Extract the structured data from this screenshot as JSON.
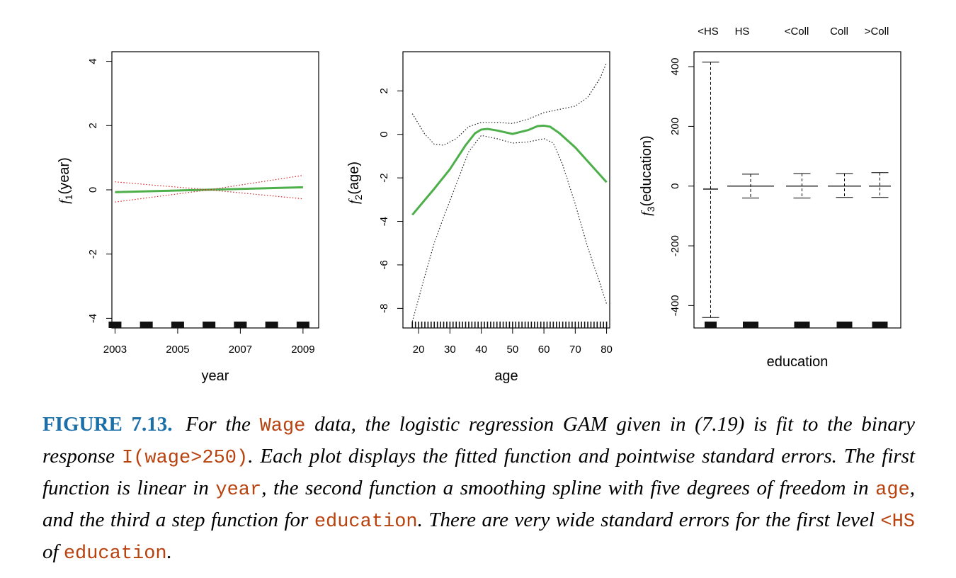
{
  "chart_data": [
    {
      "type": "line",
      "xlabel": "year",
      "ylabel_func": "f",
      "ylabel_sub": "1",
      "ylabel_arg": "(year)",
      "x_ticks": [
        2003,
        2005,
        2007,
        2009
      ],
      "y_ticks": [
        -4,
        -2,
        0,
        2,
        4
      ],
      "xlim": [
        2002.9,
        2009.5
      ],
      "ylim": [
        -4.3,
        4.3
      ],
      "grid": false,
      "series": [
        {
          "role": "fit",
          "color": "#4daf4a",
          "x": [
            2003,
            2009
          ],
          "y": [
            -0.07,
            0.08
          ]
        },
        {
          "role": "upper",
          "color": "#d62728",
          "x": [
            2003,
            2006,
            2009
          ],
          "y": [
            0.25,
            0.0,
            0.45
          ]
        },
        {
          "role": "lower",
          "color": "#d62728",
          "x": [
            2003,
            2006,
            2009
          ],
          "y": [
            -0.38,
            0.0,
            -0.28
          ]
        }
      ],
      "rug": [
        2003,
        2004,
        2005,
        2006,
        2007,
        2008,
        2009
      ]
    },
    {
      "type": "line",
      "xlabel": "age",
      "ylabel_func": "f",
      "ylabel_sub": "2",
      "ylabel_arg": "(age)",
      "x_ticks": [
        20,
        30,
        40,
        50,
        60,
        70,
        80
      ],
      "y_ticks": [
        -8,
        -6,
        -4,
        -2,
        0,
        2
      ],
      "xlim": [
        15,
        81
      ],
      "ylim": [
        -8.9,
        3.8
      ],
      "grid": false,
      "series": [
        {
          "role": "fit",
          "color": "#4daf4a",
          "x": [
            18,
            25,
            30,
            35,
            38,
            40,
            42,
            45,
            50,
            55,
            58,
            60,
            62,
            65,
            70,
            75,
            80
          ],
          "y": [
            -3.7,
            -2.5,
            -1.6,
            -0.5,
            0.05,
            0.22,
            0.25,
            0.18,
            0.02,
            0.2,
            0.38,
            0.4,
            0.35,
            0.05,
            -0.6,
            -1.4,
            -2.2
          ]
        },
        {
          "role": "upper",
          "color": "#222222",
          "x": [
            18,
            22,
            25,
            28,
            32,
            36,
            40,
            45,
            50,
            55,
            60,
            65,
            70,
            74,
            78,
            80
          ],
          "y": [
            0.95,
            0.0,
            -0.45,
            -0.5,
            -0.2,
            0.35,
            0.55,
            0.55,
            0.5,
            0.7,
            1.0,
            1.15,
            1.3,
            1.7,
            2.6,
            3.3
          ]
        },
        {
          "role": "lower",
          "color": "#222222",
          "x": [
            18,
            22,
            25,
            28,
            32,
            36,
            40,
            45,
            50,
            55,
            60,
            63,
            66,
            70,
            74,
            78,
            80
          ],
          "y": [
            -8.6,
            -6.5,
            -5.0,
            -3.8,
            -2.3,
            -0.8,
            -0.05,
            -0.2,
            -0.4,
            -0.35,
            -0.2,
            -0.4,
            -1.4,
            -3.2,
            -5.2,
            -6.9,
            -7.8
          ]
        }
      ]
    },
    {
      "type": "step",
      "xlabel": "education",
      "ylabel_func": "f",
      "ylabel_sub": "3",
      "ylabel_arg": "(education)",
      "categories": [
        "<HS",
        "HS",
        "<Coll",
        "Coll",
        ">Coll"
      ],
      "y_ticks": [
        -400,
        -200,
        0,
        200,
        400
      ],
      "ylim": [
        -475,
        450
      ],
      "grid": false,
      "levels": [
        {
          "category": "<HS",
          "value": -10,
          "upper": 415,
          "lower": -440
        },
        {
          "category": "HS",
          "value": 0,
          "upper": 40,
          "lower": -40
        },
        {
          "category": "<Coll",
          "value": 0,
          "upper": 42,
          "lower": -40
        },
        {
          "category": "Coll",
          "value": 0,
          "upper": 42,
          "lower": -38
        },
        {
          "category": ">Coll",
          "value": 0,
          "upper": 45,
          "lower": -38
        }
      ]
    }
  ],
  "caption": {
    "label": "FIGURE 7.13.",
    "t1": "For the",
    "c1": "Wage",
    "t2": "data, the logistic regression GAM given in (7.19) is fit to the binary response",
    "c2": "I(wage>250)",
    "t3": ". Each plot displays the fitted function and pointwise standard errors. The first function is linear in",
    "c3": "year",
    "t4": ", the second function a smoothing spline with five degrees of freedom in",
    "c4": "age",
    "t5": ", and the third a step function for",
    "c5": "education",
    "t6": ". There are very wide standard errors for the first level",
    "c6": "<HS",
    "t7": "of",
    "c7": "education",
    "t8": "."
  }
}
